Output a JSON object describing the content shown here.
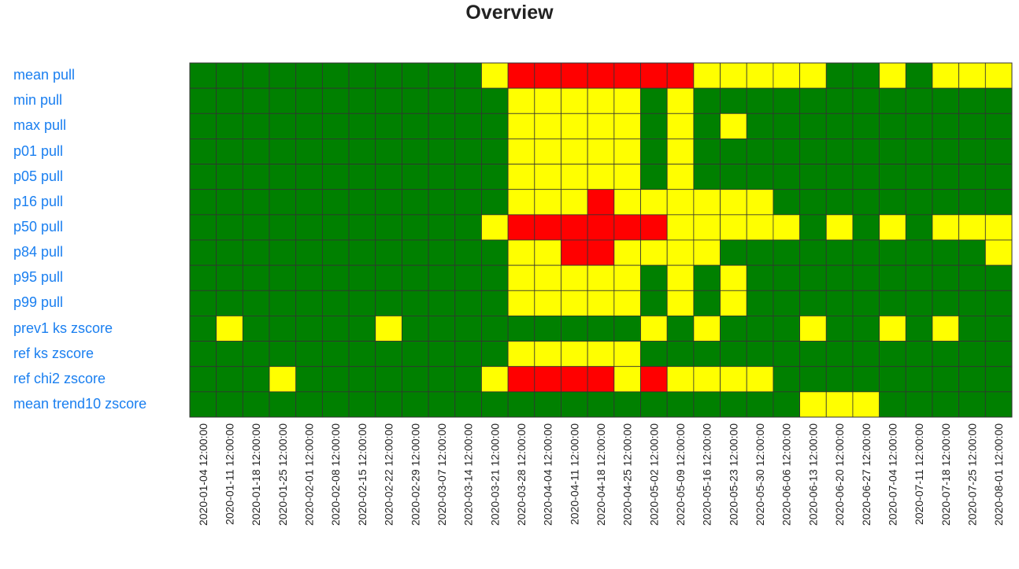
{
  "title": "Overview",
  "colors": {
    "green": "#008000",
    "yellow": "#ffff00",
    "red": "#ff0000",
    "grid_line": "#333333",
    "link": "#1a7ff0"
  },
  "chart_data": {
    "type": "heatmap",
    "title": "Overview",
    "rows": [
      "mean pull",
      "min pull",
      "max pull",
      "p01 pull",
      "p05 pull",
      "p16 pull",
      "p50 pull",
      "p84 pull",
      "p95 pull",
      "p99 pull",
      "prev1 ks zscore",
      "ref ks zscore",
      "ref chi2 zscore",
      "mean trend10 zscore"
    ],
    "columns": [
      "2020-01-04 12:00:00",
      "2020-01-11 12:00:00",
      "2020-01-18 12:00:00",
      "2020-01-25 12:00:00",
      "2020-02-01 12:00:00",
      "2020-02-08 12:00:00",
      "2020-02-15 12:00:00",
      "2020-02-22 12:00:00",
      "2020-02-29 12:00:00",
      "2020-03-07 12:00:00",
      "2020-03-14 12:00:00",
      "2020-03-21 12:00:00",
      "2020-03-28 12:00:00",
      "2020-04-04 12:00:00",
      "2020-04-11 12:00:00",
      "2020-04-18 12:00:00",
      "2020-04-25 12:00:00",
      "2020-05-02 12:00:00",
      "2020-05-09 12:00:00",
      "2020-05-16 12:00:00",
      "2020-05-23 12:00:00",
      "2020-05-30 12:00:00",
      "2020-06-06 12:00:00",
      "2020-06-13 12:00:00",
      "2020-06-20 12:00:00",
      "2020-06-27 12:00:00",
      "2020-07-04 12:00:00",
      "2020-07-11 12:00:00",
      "2020-07-18 12:00:00",
      "2020-07-25 12:00:00",
      "2020-08-01 12:00:00"
    ],
    "legend": {
      "G": "green",
      "Y": "yellow",
      "R": "red"
    },
    "values": [
      "GGGGGGGGGGGYRRRRRRRYYYYYGGYGYYY",
      "GGGGGGGGGGGGYYYYYGYGGGGGGGGGGGG",
      "GGGGGGGGGGGGYYYYYGYGYGGGGGGGGGG",
      "GGGGGGGGGGGGYYYYYGYGGGGGGGGGGGG",
      "GGGGGGGGGGGGYYYYYGYGGGGGGGGGGGG",
      "GGGGGGGGGGGGYYYRYYYYYYGGGGGGGGG",
      "GGGGGGGGGGGYRRRRRRYYYYYGYGYGYYY",
      "GGGGGGGGGGGGYYRRYYYYGGGGGGGGGGY",
      "GGGGGGGGGGGGYYYYYGYGYGGGGGGGGGG",
      "GGGGGGGGGGGGYYYYYGYGYGGGGGGGGGG",
      "GYGGGGGYGGGGGGGGGYGYGGGYGGYGYGG",
      "GGGGGGGGGGGGYYYYYGGGGGGGGGGGGGG",
      "GGGYGGGGGGGYRRRRYRYYYYGGGGGGGGG",
      "GGGGGGGGGGGGGGGGGGGGGGGYYYGGGGG"
    ]
  }
}
